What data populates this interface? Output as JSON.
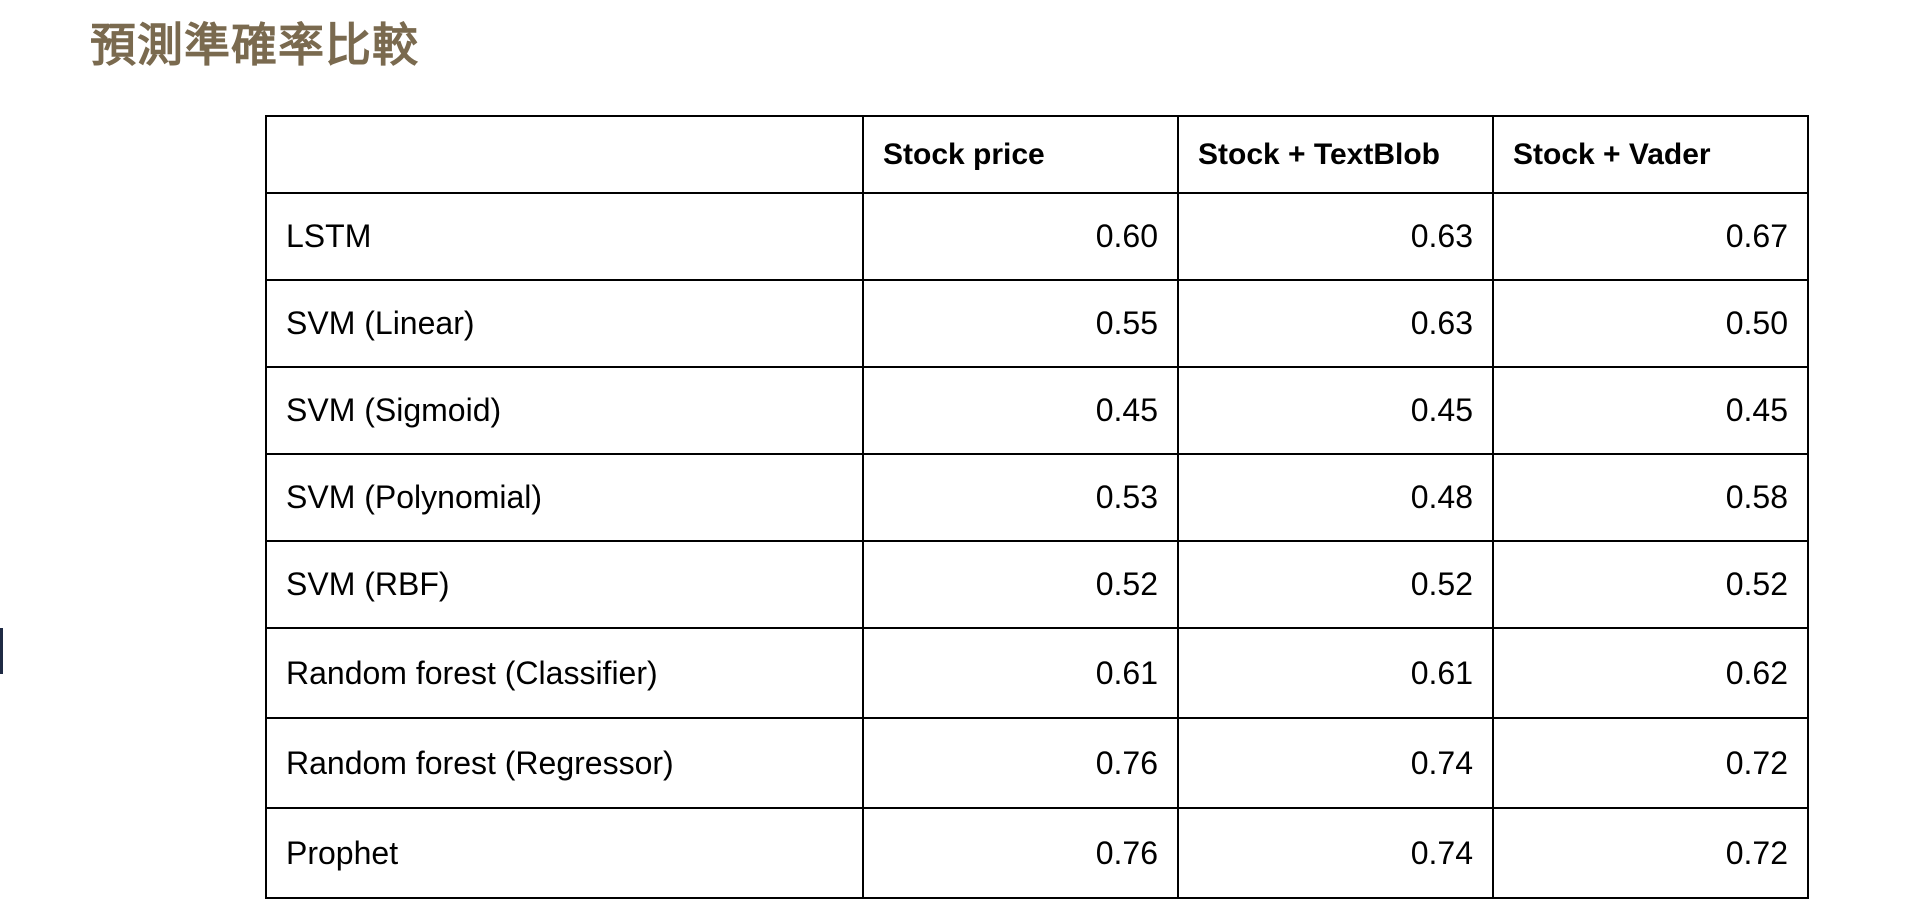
{
  "page": {
    "title": "預測準確率比較"
  },
  "colors": {
    "title": "#7a6a4f",
    "border": "#000000",
    "background": "#ffffff"
  },
  "table": {
    "corner": "",
    "columns": [
      "Stock price",
      "Stock + TextBlob",
      "Stock + Vader"
    ],
    "rows": [
      {
        "model": "LSTM",
        "values": [
          "0.60",
          "0.63",
          "0.67"
        ]
      },
      {
        "model": "SVM (Linear)",
        "values": [
          "0.55",
          "0.63",
          "0.50"
        ]
      },
      {
        "model": "SVM (Sigmoid)",
        "values": [
          "0.45",
          "0.45",
          "0.45"
        ]
      },
      {
        "model": "SVM (Polynomial)",
        "values": [
          "0.53",
          "0.48",
          "0.58"
        ]
      },
      {
        "model": "SVM (RBF)",
        "values": [
          "0.52",
          "0.52",
          "0.52"
        ]
      },
      {
        "model": "Random forest (Classifier)",
        "values": [
          "0.61",
          "0.61",
          "0.62"
        ]
      },
      {
        "model": "Random forest (Regressor)",
        "values": [
          "0.76",
          "0.74",
          "0.72"
        ]
      },
      {
        "model": "Prophet",
        "values": [
          "0.76",
          "0.74",
          "0.72"
        ]
      }
    ]
  }
}
